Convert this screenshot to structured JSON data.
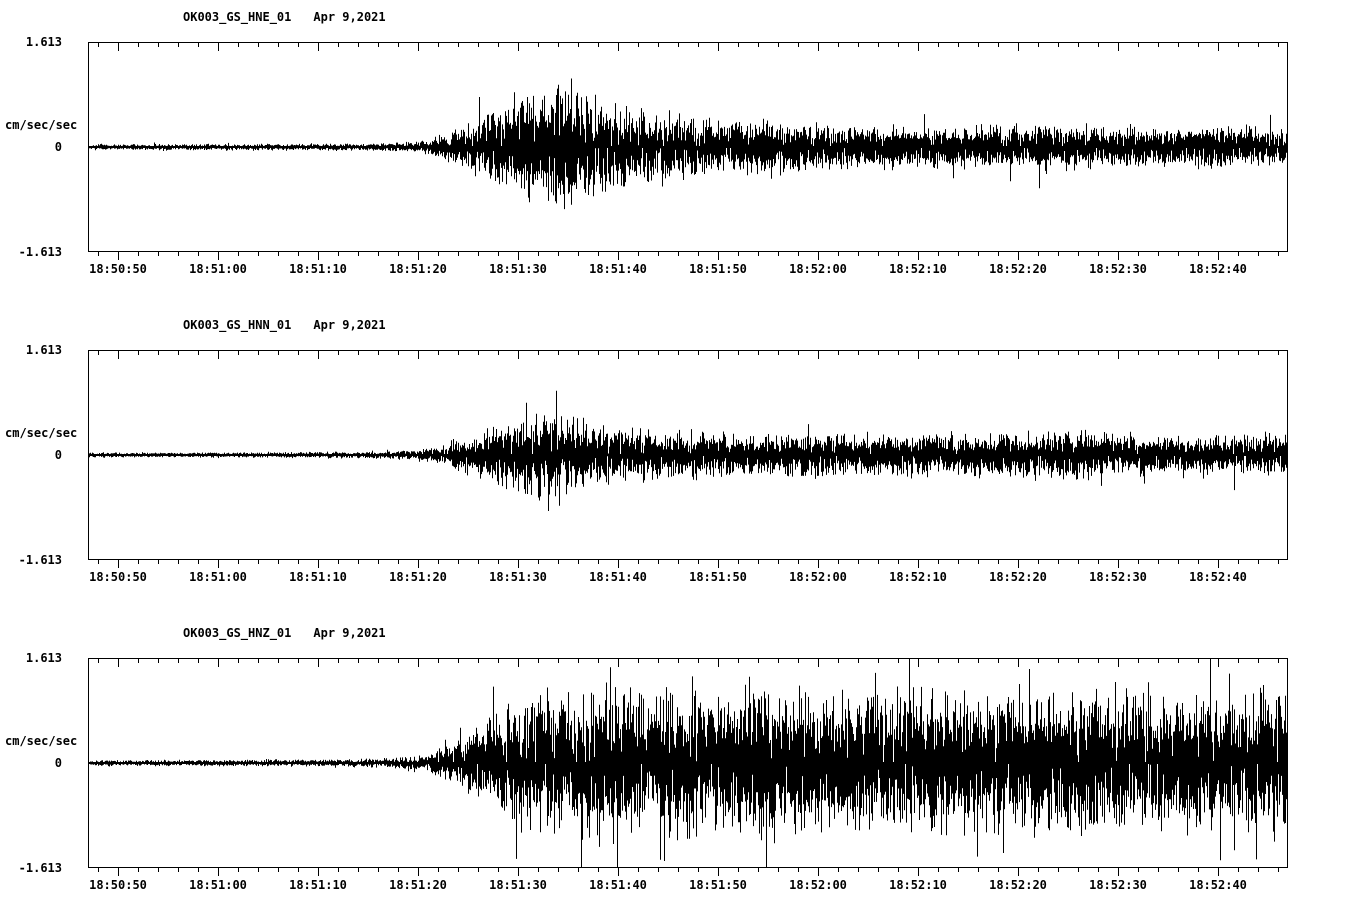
{
  "page": {
    "background_color": "#ffffff",
    "trace_color": "#000000",
    "axis_color": "#000000"
  },
  "chart_data": [
    {
      "type": "line",
      "kind": "seismogram-trace",
      "title": "OK003_GS_HNE_01",
      "date_label": "Apr 9,2021",
      "ylabel": "cm/sec/sec",
      "ylim": [
        -1.613,
        1.613
      ],
      "ytick_labels": [
        "1.613",
        "0",
        "-1.613"
      ],
      "x_start_time": "18:50:47",
      "x_end_time": "18:52:47",
      "duration_sec": 120,
      "xtick_labels": [
        "18:50:50",
        "18:51:00",
        "18:51:10",
        "18:51:20",
        "18:51:30",
        "18:51:40",
        "18:51:50",
        "18:52:00",
        "18:52:10",
        "18:52:20",
        "18:52:30",
        "18:52:40"
      ],
      "xtick_offsets_sec": [
        3,
        13,
        23,
        33,
        43,
        53,
        63,
        73,
        83,
        93,
        103,
        113
      ],
      "minor_tick_sec": 2,
      "event_onset_time": "18:51:21",
      "peak_time": "18:51:33",
      "envelope_cm_s2": [
        [
          0,
          0.04
        ],
        [
          15,
          0.045
        ],
        [
          28,
          0.05
        ],
        [
          33,
          0.08
        ],
        [
          36,
          0.2
        ],
        [
          40,
          0.5
        ],
        [
          44,
          0.8
        ],
        [
          47,
          0.95
        ],
        [
          50,
          0.75
        ],
        [
          54,
          0.55
        ],
        [
          58,
          0.45
        ],
        [
          64,
          0.38
        ],
        [
          72,
          0.33
        ],
        [
          80,
          0.3
        ],
        [
          88,
          0.28
        ],
        [
          95,
          0.34
        ],
        [
          100,
          0.3
        ],
        [
          108,
          0.27
        ],
        [
          114,
          0.3
        ],
        [
          120,
          0.28
        ]
      ],
      "spike_prob": 0.02,
      "spike_mult": 1.7,
      "seed": 11
    },
    {
      "type": "line",
      "kind": "seismogram-trace",
      "title": "OK003_GS_HNN_01",
      "date_label": "Apr 9,2021",
      "ylabel": "cm/sec/sec",
      "ylim": [
        -1.613,
        1.613
      ],
      "ytick_labels": [
        "1.613",
        "0",
        "-1.613"
      ],
      "x_start_time": "18:50:47",
      "x_end_time": "18:52:47",
      "duration_sec": 120,
      "xtick_labels": [
        "18:50:50",
        "18:51:00",
        "18:51:10",
        "18:51:20",
        "18:51:30",
        "18:51:40",
        "18:51:50",
        "18:52:00",
        "18:52:10",
        "18:52:20",
        "18:52:30",
        "18:52:40"
      ],
      "xtick_offsets_sec": [
        3,
        13,
        23,
        33,
        43,
        53,
        63,
        73,
        83,
        93,
        103,
        113
      ],
      "minor_tick_sec": 2,
      "event_onset_time": "18:51:22",
      "peak_time": "18:51:33",
      "envelope_cm_s2": [
        [
          0,
          0.035
        ],
        [
          20,
          0.04
        ],
        [
          30,
          0.05
        ],
        [
          34,
          0.09
        ],
        [
          38,
          0.25
        ],
        [
          43,
          0.5
        ],
        [
          46,
          0.65
        ],
        [
          49,
          0.5
        ],
        [
          54,
          0.4
        ],
        [
          60,
          0.33
        ],
        [
          68,
          0.3
        ],
        [
          76,
          0.32
        ],
        [
          84,
          0.3
        ],
        [
          92,
          0.31
        ],
        [
          99,
          0.35
        ],
        [
          104,
          0.3
        ],
        [
          112,
          0.26
        ],
        [
          117,
          0.3
        ],
        [
          120,
          0.28
        ]
      ],
      "spike_prob": 0.015,
      "spike_mult": 1.55,
      "seed": 22
    },
    {
      "type": "line",
      "kind": "seismogram-trace",
      "title": "OK003_GS_HNZ_01",
      "date_label": "Apr 9,2021",
      "ylabel": "cm/sec/sec",
      "ylim": [
        -1.613,
        1.613
      ],
      "ytick_labels": [
        "1.613",
        "0",
        "-1.613"
      ],
      "x_start_time": "18:50:47",
      "x_end_time": "18:52:47",
      "duration_sec": 120,
      "xtick_labels": [
        "18:50:50",
        "18:51:00",
        "18:51:10",
        "18:51:20",
        "18:51:30",
        "18:51:40",
        "18:51:50",
        "18:52:00",
        "18:52:10",
        "18:52:20",
        "18:52:30",
        "18:52:40"
      ],
      "xtick_offsets_sec": [
        3,
        13,
        23,
        33,
        43,
        53,
        63,
        73,
        83,
        93,
        103,
        113
      ],
      "minor_tick_sec": 2,
      "event_onset_time": "18:51:22",
      "peak_time": "18:51:32",
      "envelope_cm_s2": [
        [
          0,
          0.04
        ],
        [
          18,
          0.045
        ],
        [
          30,
          0.06
        ],
        [
          34,
          0.12
        ],
        [
          37,
          0.35
        ],
        [
          41,
          0.75
        ],
        [
          45,
          1.0
        ],
        [
          50,
          1.05
        ],
        [
          56,
          0.95
        ],
        [
          62,
          1.0
        ],
        [
          68,
          1.05
        ],
        [
          75,
          0.95
        ],
        [
          82,
          1.0
        ],
        [
          88,
          1.05
        ],
        [
          95,
          1.0
        ],
        [
          102,
          1.05
        ],
        [
          108,
          0.95
        ],
        [
          114,
          0.9
        ],
        [
          120,
          1.0
        ]
      ],
      "spike_prob": 0.05,
      "spike_mult": 1.6,
      "seed": 33
    }
  ]
}
